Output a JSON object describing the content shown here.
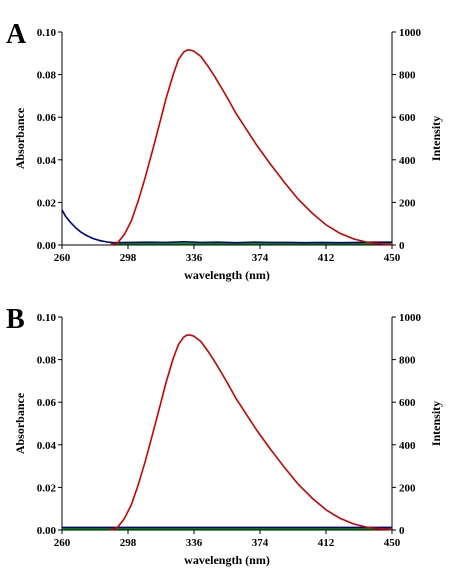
{
  "chart_data": [
    {
      "type": "line",
      "panel_label": "A",
      "xlabel": "wavelength (nm)",
      "ylabel_left": "Absorbance",
      "ylabel_right": "Intensity",
      "xlim": [
        260,
        450
      ],
      "ylim_left": [
        0,
        0.1
      ],
      "ylim_right": [
        0,
        1000
      ],
      "x_ticks": [
        260,
        298,
        336,
        374,
        412,
        450
      ],
      "x_tick_labels": [
        "260",
        "298",
        "336",
        "374",
        "412",
        "450"
      ],
      "y_left_ticks": [
        0,
        0.02,
        0.04,
        0.06,
        0.08,
        0.1
      ],
      "y_left_tick_labels": [
        "0.00",
        "0.02",
        "0.04",
        "0.06",
        "0.08",
        "0.10"
      ],
      "y_right_ticks": [
        0,
        200,
        400,
        600,
        800,
        1000
      ],
      "y_right_tick_labels": [
        "0",
        "200",
        "400",
        "600",
        "800",
        "1000"
      ],
      "grid": false,
      "series": [
        {
          "axis": "right",
          "color": "#cc0000",
          "points": [
            [
              288,
              0
            ],
            [
              292,
              10
            ],
            [
              296,
              50
            ],
            [
              300,
              115
            ],
            [
              304,
              210
            ],
            [
              308,
              320
            ],
            [
              312,
              440
            ],
            [
              316,
              565
            ],
            [
              320,
              690
            ],
            [
              324,
              800
            ],
            [
              327,
              870
            ],
            [
              330,
              905
            ],
            [
              332,
              915
            ],
            [
              334,
              915
            ],
            [
              336,
              910
            ],
            [
              340,
              885
            ],
            [
              344,
              840
            ],
            [
              348,
              790
            ],
            [
              352,
              735
            ],
            [
              356,
              680
            ],
            [
              360,
              620
            ],
            [
              366,
              545
            ],
            [
              372,
              470
            ],
            [
              380,
              380
            ],
            [
              388,
              295
            ],
            [
              396,
              215
            ],
            [
              404,
              150
            ],
            [
              412,
              95
            ],
            [
              420,
              55
            ],
            [
              428,
              28
            ],
            [
              436,
              12
            ],
            [
              444,
              5
            ],
            [
              450,
              2
            ]
          ]
        },
        {
          "axis": "left",
          "color": "#000080",
          "points": [
            [
              260,
              0.0165
            ],
            [
              262,
              0.0135
            ],
            [
              265,
              0.0105
            ],
            [
              268,
              0.008
            ],
            [
              271,
              0.006
            ],
            [
              274,
              0.0045
            ],
            [
              278,
              0.003
            ],
            [
              282,
              0.002
            ],
            [
              286,
              0.0014
            ],
            [
              290,
              0.0011
            ],
            [
              300,
              0.0012
            ],
            [
              310,
              0.0013
            ],
            [
              320,
              0.0012
            ],
            [
              330,
              0.0015
            ],
            [
              340,
              0.0012
            ],
            [
              350,
              0.0013
            ],
            [
              360,
              0.0011
            ],
            [
              370,
              0.0013
            ],
            [
              380,
              0.0012
            ],
            [
              390,
              0.0012
            ],
            [
              400,
              0.0011
            ],
            [
              410,
              0.0012
            ],
            [
              420,
              0.0011
            ],
            [
              430,
              0.0012
            ],
            [
              440,
              0.0013
            ],
            [
              450,
              0.0013
            ]
          ]
        },
        {
          "axis": "left",
          "color": "#00a000",
          "points": [
            [
              288,
              0.0006
            ],
            [
              450,
              0.0006
            ]
          ]
        }
      ]
    },
    {
      "type": "line",
      "panel_label": "B",
      "xlabel": "wavelength (nm)",
      "ylabel_left": "Absorbance",
      "ylabel_right": "Intensity",
      "xlim": [
        260,
        450
      ],
      "ylim_left": [
        0,
        0.1
      ],
      "ylim_right": [
        0,
        1000
      ],
      "x_ticks": [
        260,
        298,
        336,
        374,
        412,
        450
      ],
      "x_tick_labels": [
        "260",
        "298",
        "336",
        "374",
        "412",
        "450"
      ],
      "y_left_ticks": [
        0,
        0.02,
        0.04,
        0.06,
        0.08,
        0.1
      ],
      "y_left_tick_labels": [
        "0.00",
        "0.02",
        "0.04",
        "0.06",
        "0.08",
        "0.10"
      ],
      "y_right_ticks": [
        0,
        200,
        400,
        600,
        800,
        1000
      ],
      "y_right_tick_labels": [
        "0",
        "200",
        "400",
        "600",
        "800",
        "1000"
      ],
      "grid": false,
      "series": [
        {
          "axis": "right",
          "color": "#cc0000",
          "points": [
            [
              288,
              0
            ],
            [
              292,
              12
            ],
            [
              296,
              55
            ],
            [
              300,
              120
            ],
            [
              304,
              215
            ],
            [
              308,
              325
            ],
            [
              312,
              445
            ],
            [
              316,
              570
            ],
            [
              320,
              695
            ],
            [
              324,
              805
            ],
            [
              327,
              870
            ],
            [
              330,
              905
            ],
            [
              332,
              915
            ],
            [
              334,
              915
            ],
            [
              336,
              910
            ],
            [
              340,
              885
            ],
            [
              344,
              840
            ],
            [
              348,
              790
            ],
            [
              352,
              735
            ],
            [
              356,
              680
            ],
            [
              360,
              620
            ],
            [
              366,
              545
            ],
            [
              372,
              470
            ],
            [
              380,
              380
            ],
            [
              388,
              295
            ],
            [
              396,
              215
            ],
            [
              404,
              150
            ],
            [
              412,
              95
            ],
            [
              420,
              55
            ],
            [
              428,
              28
            ],
            [
              436,
              12
            ],
            [
              444,
              5
            ],
            [
              450,
              2
            ]
          ]
        },
        {
          "axis": "left",
          "color": "#000080",
          "points": [
            [
              260,
              0.0012
            ],
            [
              450,
              0.0012
            ]
          ]
        },
        {
          "axis": "left",
          "color": "#00a000",
          "points": [
            [
              260,
              0.0006
            ],
            [
              450,
              0.0006
            ]
          ]
        }
      ]
    }
  ]
}
